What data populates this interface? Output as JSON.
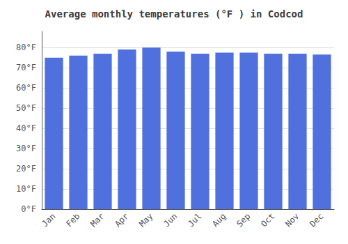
{
  "chart_data": {
    "type": "bar",
    "title": "Average monthly temperatures (°F ) in Codcod",
    "categories": [
      "Jan",
      "Feb",
      "Mar",
      "Apr",
      "May",
      "Jun",
      "Jul",
      "Aug",
      "Sep",
      "Oct",
      "Nov",
      "Dec"
    ],
    "values": [
      75.0,
      76.0,
      77.0,
      79.0,
      80.0,
      78.0,
      77.0,
      77.5,
      77.5,
      77.0,
      77.0,
      76.5
    ],
    "ylim": [
      0,
      88
    ],
    "yticks": [
      {
        "value": 0,
        "label": "0°F"
      },
      {
        "value": 10,
        "label": "10°F"
      },
      {
        "value": 20,
        "label": "20°F"
      },
      {
        "value": 30,
        "label": "30°F"
      },
      {
        "value": 40,
        "label": "40°F"
      },
      {
        "value": 50,
        "label": "50°F"
      },
      {
        "value": 60,
        "label": "60°F"
      },
      {
        "value": 70,
        "label": "70°F"
      },
      {
        "value": 80,
        "label": "80°F"
      }
    ],
    "grid": true
  }
}
